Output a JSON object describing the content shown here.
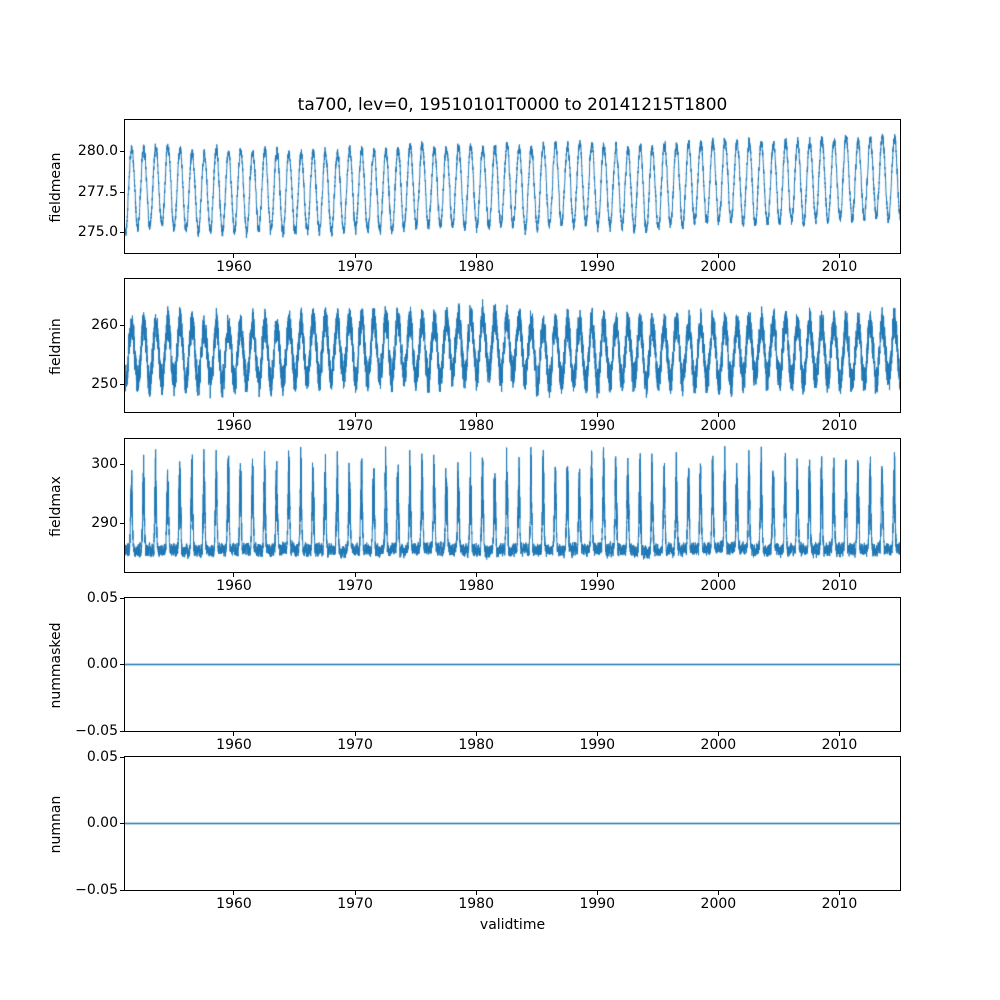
{
  "figure": {
    "title": "ta700, lev=0, 19510101T0000 to 20141215T1800",
    "xlabel": "validtime",
    "background_color": "#ffffff",
    "line_color": "#1f77b4",
    "axis_color": "#000000"
  },
  "chart_data": [
    {
      "type": "line",
      "name": "fieldmean",
      "ylabel": "fieldmean",
      "grid": false,
      "legend": false,
      "x": {
        "min": 1951.0,
        "max": 2015.0,
        "ticks": [
          1960,
          1970,
          1980,
          1990,
          2000,
          2010
        ],
        "tick_labels": [
          "1960",
          "1970",
          "1980",
          "1990",
          "2000",
          "2010"
        ]
      },
      "y": {
        "min": 273.75,
        "max": 281.95,
        "ticks": [
          275.0,
          277.5,
          280.0
        ],
        "tick_labels": [
          "275.0",
          "277.5",
          "280.0"
        ]
      },
      "series": [
        {
          "name": "fieldmean",
          "color": "#1f77b4",
          "kind": "seasonal",
          "base": 277.55,
          "trend_per_year": 0.011,
          "amplitude": 2.45,
          "noise": 0.25,
          "fast_rho": 0.55,
          "slow_noise": 0.018,
          "phase": 0.3,
          "seed": 7,
          "points": 9300,
          "approx_min": 274.2,
          "approx_max": 281.6,
          "description": "Dense 4x-daily field-mean temperature with annual cycle oscillating roughly 274.3-281.5 and a slight upward trend"
        }
      ]
    },
    {
      "type": "line",
      "name": "fieldmin",
      "ylabel": "fieldmin",
      "grid": false,
      "legend": false,
      "x": {
        "min": 1951.0,
        "max": 2015.0,
        "ticks": [
          1960,
          1970,
          1980,
          1990,
          2000,
          2010
        ],
        "tick_labels": [
          "1960",
          "1970",
          "1980",
          "1990",
          "2000",
          "2010"
        ]
      },
      "y": {
        "min": 245.3,
        "max": 267.8,
        "ticks": [
          250,
          260
        ],
        "tick_labels": [
          "250",
          "260"
        ]
      },
      "series": [
        {
          "name": "fieldmin",
          "color": "#1f77b4",
          "kind": "seasonal",
          "base": 255.6,
          "trend_per_year": 0.0,
          "amplitude": 4.8,
          "noise": 2.3,
          "fast_rho": 0.3,
          "slow_noise": 0.05,
          "phase": 0.3,
          "seed": 12,
          "points": 9300,
          "approx_min": 245.5,
          "approx_max": 267.0,
          "description": "Very noisy field-minimum series forming a dense band roughly 246-266 with annual modulation"
        }
      ]
    },
    {
      "type": "line",
      "name": "fieldmax",
      "ylabel": "fieldmax",
      "grid": false,
      "legend": false,
      "x": {
        "min": 1951.0,
        "max": 2015.0,
        "ticks": [
          1960,
          1970,
          1980,
          1990,
          2000,
          2010
        ],
        "tick_labels": [
          "1960",
          "1970",
          "1980",
          "1990",
          "2000",
          "2010"
        ]
      },
      "y": {
        "min": 281.9,
        "max": 304.2,
        "ticks": [
          290,
          300
        ],
        "tick_labels": [
          "290",
          "300"
        ]
      },
      "series": [
        {
          "name": "fieldmax",
          "color": "#1f77b4",
          "kind": "seasonal-spikes",
          "base": 285.6,
          "trend_per_year": 0.0,
          "noise": 0.9,
          "fast_rho": 0.45,
          "slow_noise": 0.02,
          "phase": 0.28,
          "sharpness": 5,
          "spike_min": 5.5,
          "spike_max": 17,
          "seed": 5,
          "points": 9300,
          "approx_min": 283.0,
          "approx_max": 303.5,
          "description": "Field-maximum series: dense base band near 284-288 with seasonal upward spikes reaching about 295-303"
        }
      ]
    },
    {
      "type": "line",
      "name": "nummasked",
      "ylabel": "nummasked",
      "grid": false,
      "legend": false,
      "x": {
        "min": 1951.0,
        "max": 2015.0,
        "ticks": [
          1960,
          1970,
          1980,
          1990,
          2000,
          2010
        ],
        "tick_labels": [
          "1960",
          "1970",
          "1980",
          "1990",
          "2000",
          "2010"
        ]
      },
      "y": {
        "min": -0.05,
        "max": 0.05,
        "ticks": [
          0.05,
          0.0,
          -0.05
        ],
        "tick_labels": [
          "0.05",
          "0.00",
          "−0.05"
        ]
      },
      "series": [
        {
          "name": "nummasked",
          "color": "#1f77b4",
          "kind": "constant",
          "value": 0,
          "points": 2,
          "approx_min": 0,
          "approx_max": 0,
          "description": "Constant zero line: no masked points over the whole period"
        }
      ]
    },
    {
      "type": "line",
      "name": "numnan",
      "ylabel": "numnan",
      "grid": false,
      "legend": false,
      "x": {
        "min": 1951.0,
        "max": 2015.0,
        "ticks": [
          1960,
          1970,
          1980,
          1990,
          2000,
          2010
        ],
        "tick_labels": [
          "1960",
          "1970",
          "1980",
          "1990",
          "2000",
          "2010"
        ]
      },
      "y": {
        "min": -0.05,
        "max": 0.05,
        "ticks": [
          0.05,
          0.0,
          -0.05
        ],
        "tick_labels": [
          "0.05",
          "0.00",
          "−0.05"
        ]
      },
      "series": [
        {
          "name": "numnan",
          "color": "#1f77b4",
          "kind": "constant",
          "value": 0,
          "points": 2,
          "approx_min": 0,
          "approx_max": 0,
          "description": "Constant zero line: no NaN points over the whole period"
        }
      ]
    }
  ]
}
